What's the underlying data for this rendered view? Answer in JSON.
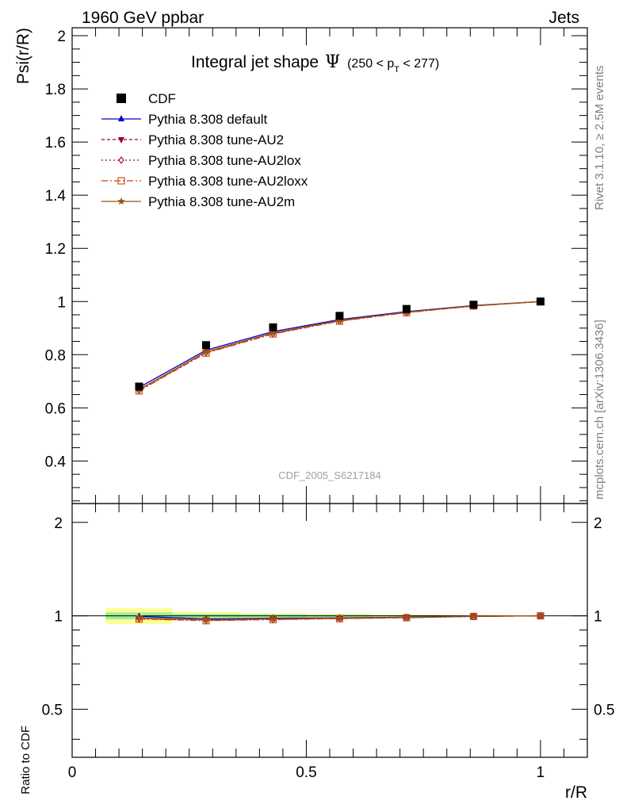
{
  "header": {
    "left": "1960 GeV ppbar",
    "right": "Jets"
  },
  "side_labels": {
    "rivet": "Rivet 3.1.10, ≥ 2.5M events",
    "mcplots": "mcplots.cern.ch [arXiv:1306.3436]"
  },
  "chart_data": {
    "type": "line",
    "title": "Integral jet shape",
    "title_symbol": "Ψ",
    "title_range": "(250 < p",
    "title_range_sub": "T",
    "title_range_end": " < 277)",
    "watermark": "CDF_2005_S6217184",
    "xlabel": "r/R",
    "ylabel": "Psi(r/R)",
    "ratio_ylabel": "Ratio to CDF",
    "xlim": [
      0,
      1.1
    ],
    "ylim": [
      0.24,
      2.03
    ],
    "ratio_ylim": [
      0.35,
      2.3
    ],
    "x_ticks": [
      0,
      0.5,
      1
    ],
    "x_tick_labels": [
      "0",
      "0.5",
      "1"
    ],
    "y_ticks": [
      0.4,
      0.6,
      0.8,
      1,
      1.2,
      1.4,
      1.6,
      1.8,
      2
    ],
    "y_tick_labels": [
      "0.4",
      "0.6",
      "0.8",
      "1",
      "1.2",
      "1.4",
      "1.6",
      "1.8",
      "2"
    ],
    "ratio_ticks": [
      0.5,
      1,
      2
    ],
    "ratio_tick_labels": [
      "0.5",
      "1",
      "2"
    ],
    "x": [
      0.143,
      0.286,
      0.429,
      0.571,
      0.714,
      0.857,
      1.0
    ],
    "data": {
      "name": "CDF",
      "values": [
        0.68,
        0.836,
        0.903,
        0.946,
        0.972,
        0.988,
        1.0
      ],
      "errors": [
        0.01,
        0.01,
        0.008,
        0.006,
        0.004,
        0.002,
        0.0
      ],
      "band_inner": [
        0.025,
        0.015,
        0.012,
        0.008,
        0.005,
        0.003,
        0.0
      ],
      "band_outer": [
        0.06,
        0.03,
        0.02,
        0.015,
        0.01,
        0.006,
        0.0
      ]
    },
    "series": [
      {
        "name": "Pythia 8.308 default",
        "color": "#0000cc",
        "dash": "",
        "marker": "triangle-up",
        "values": [
          0.677,
          0.817,
          0.887,
          0.932,
          0.962,
          0.985,
          1.0
        ]
      },
      {
        "name": "Pythia 8.308 tune-AU2",
        "color": "#990033",
        "dash": "4,3",
        "marker": "triangle-down",
        "values": [
          0.668,
          0.81,
          0.881,
          0.928,
          0.96,
          0.984,
          1.0
        ]
      },
      {
        "name": "Pythia 8.308 tune-AU2lox",
        "color": "#aa0022",
        "dash": "2,3",
        "marker": "diamond-open",
        "values": [
          0.666,
          0.808,
          0.879,
          0.927,
          0.959,
          0.983,
          1.0
        ]
      },
      {
        "name": "Pythia 8.308 tune-AU2loxx",
        "color": "#cc4411",
        "dash": "8,3,2,3",
        "marker": "square-open",
        "values": [
          0.664,
          0.806,
          0.878,
          0.926,
          0.958,
          0.983,
          1.0
        ]
      },
      {
        "name": "Pythia 8.308 tune-AU2m",
        "color": "#995511",
        "dash": "",
        "marker": "star",
        "values": [
          0.669,
          0.811,
          0.882,
          0.929,
          0.96,
          0.984,
          1.0
        ]
      }
    ],
    "legend_position": "top-left",
    "grid": false
  }
}
